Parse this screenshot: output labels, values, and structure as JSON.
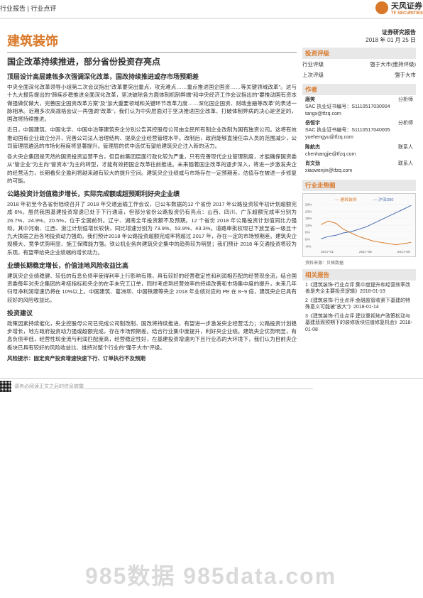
{
  "header": {
    "breadcrumb": "行业报告   |   行业点评",
    "company": "天风证券",
    "company_en": "TF SECURITIES"
  },
  "sector": "建筑装饰",
  "article_title": "国企改革持续推进，部分省份投资存亮点",
  "report_label": "证券研究报告",
  "report_date": "2018 年 01 月 25 日",
  "sections": [
    {
      "title": "顶层设计高层建瓴多次强调深化改革，国改持续推进或存市场预期差",
      "paras": [
        "中央全面深化改革领导小组第二次会议指出\"改革要突出重点，攻克难点……重点推进国企国资……等关键领域改革\"。这与十九大报告提出的\"蹄疾步稳推进全面深化改革，坚决破除各方面体制机制弊端\"和中央经济工作会议指出的\"要推动国有资本做强做优做大，完善国企国资改革方案\"及\"加大重要领域和关键环节改革力度……深化国企国资、财政金融等改革\"的表述一脉相承。近期多次高规格会议一再强调\"改革\"，我们认为中央层面对于坚决推进国企改革、打破体制弊病的决心是坚定的，国改将持续推进。",
        "近日，中国建筑、中国化学、中国中冶等建筑央企分别公告其控股母公司由全民所有制企业改制为国有独资公司。这将有效推动国有企业政企分开，完善公司法人治理结构、提高企业经营管理水平。改制后，政府能够直接任命人员的范围减少，公司管理层遴选的市场化程度将显著提升。管理层的优中选优有望给建筑央企注入新的活力。",
        "各大央企集团是天然的国资投资运营平台，但目前集团层面行政化较为严重，只有完善现代企业管理制度，才能确保国资委从\"管企业\"为主向\"管资本\"为主的转型，才能有效把国企改革往前推进。未来随着国企改革的逐步深入，将进一步激发央企的经营活力，长期看央企盈利将越来越有较大的提升空间。建筑央企业绩或与市场存在一定预期差，估值存在被进一步修复的可能。"
      ]
    },
    {
      "title": "公路投资计划值稳步增长，实际完成额或超预期利好央企业绩",
      "paras": [
        "2018 年初至今各省份陆续召开了 2018 年交通运输工作会议，已公布数据的12 个省份 2017 年公路投资较年初计划超额完成 6%。虽然我国基建投资增速已处于下行通道，但部分省份公路投资仍有亮点：山西、四川、广东超额完成率分别为 26.7%、24.9%、20.5%，位于全国前列。辽宁、湖南全年投资额不及预期。12 个省份 2018 年公路投资计划值同比力强劲。其中河南、江西、浙江计划值增长较快，同比增速分别为 73.9%、53.9%、43.3%。道路审批权现已下放至省一级且十九大换届之后各地投资动力强劲。我们预计2018 年公路投资超额完成率将超过 2017 年，存在一定的市场预期差。建筑央企规模大、竞争优势明显、施工保障能力强。铁公机业务向建筑央企集中的趋势较为明显；我们预计 2018 年交通投资将较为乐观，有望带给央企业绩端的增长动力。"
      ]
    },
    {
      "title": "业绩长期稳定增长，价值洼地风险收益比高",
      "paras": [
        "建筑央企业绩稳健、较低的有息负债率使得利率上行影响有限，具有较好的经营稳定性和利润相匹配的经营现金流，结合国资委每年对央企集团的考核指标和央企的在手未完工订单，同时考虑到经营效率的持续改善和市场集中度的提升，未来几年归母净利润增速仍将在 10%以上。中国建筑、葛洲坝、中国铁建等央企 2018 年业绩对应的 PE 在 8~9 倍，建筑央企已具有较好的风险收益比。"
      ]
    },
    {
      "title": "投资建议",
      "paras": [
        "政策因素持续催化，央企控股母公司已完成公司制改制、国改将持续推进，有望进一步激发央企经营活力；公路投资计划稳步增长，地方政府投资动力强或超额完成，存在市场预期差。结合行业集中度提升，利好央企业绩。建筑央企优势明显，有息负债率低，经营性现金流与利润匹配度高，经营稳定性好，在基建投资增速向下且行业态的大环境下，我们认为目前央企板块已具有较好的风险收益比、维持对整个行业的\"强于大市\"评级。"
      ]
    }
  ],
  "risk": "风险提示：固定资产投资增速快速下行、订单执行不及预期",
  "rating_block": {
    "title": "投资评级",
    "rows": [
      {
        "k": "行业评级",
        "v": "强于大市(维持评级)"
      },
      {
        "k": "上次评级",
        "v": "强于大市"
      }
    ]
  },
  "authors_title": "作者",
  "authors": [
    {
      "name": "唐笑",
      "role": "分析师",
      "lines": [
        "SAC 执业证书编号：S1110517030004",
        "tangx@tfzq.com"
      ]
    },
    {
      "name": "岳恒宇",
      "role": "分析师",
      "lines": [
        "SAC 执业证书编号：S1110517040005",
        "yuehengyu@tfzq.com"
      ]
    },
    {
      "name": "陈航杰",
      "role": "联系人",
      "lines": [
        "chenhangjie@tfzq.com"
      ]
    },
    {
      "name": "肖文劲",
      "role": "联系人",
      "lines": [
        "xiaowenjin@tfzq.com"
      ]
    }
  ],
  "chart": {
    "title": "行业走势图",
    "series": [
      {
        "name": "建筑装饰",
        "color": "#d97828"
      },
      {
        "name": "沪深300",
        "color": "#4a6db0"
      }
    ],
    "x_labels": [
      "2017-01",
      "2017-05",
      "2017-09"
    ],
    "y_ticks": [
      "-6%",
      "0%",
      "6%",
      "12%",
      "18%",
      "23%",
      "29%"
    ],
    "source": "资料来源：贝格数据",
    "line1": [
      12,
      15,
      13,
      8,
      5,
      2,
      0,
      -2,
      -3,
      -4,
      -5,
      -4,
      -3
    ],
    "line2": [
      0,
      2,
      3,
      5,
      6,
      8,
      10,
      13,
      16,
      19,
      22,
      25,
      28
    ]
  },
  "related_title": "相关报告",
  "related": [
    "1《建筑装饰-行业点评:集中度提升和经营效率改善是央企主要投资逻辑》2018-01-19",
    "2《建筑装饰-行业点评:金融监管收紧下基建的特殊意义可能被\"放大\"》2018-01-14",
    "3《建筑装饰-行业点评:建议重视地产政策松动与基建悲观预期下的装修板块估值修复机会》2018-01-08"
  ],
  "footer": "请务必阅读正文之后的信息披露___________________________________________________________________________________",
  "watermark": "985数据   985data.com"
}
